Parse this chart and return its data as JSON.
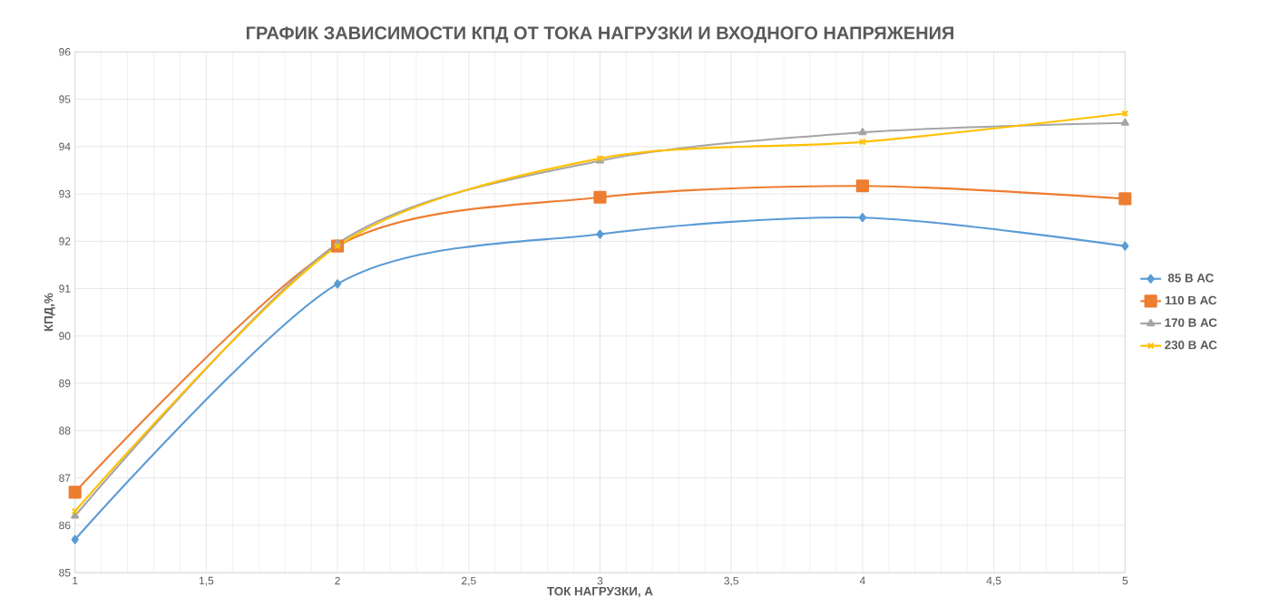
{
  "chart_data": {
    "type": "line",
    "title": "ГРАФИК ЗАВИСИМОСТИ КПД ОТ ТОКА НАГРУЗКИ И ВХОДНОГО НАПРЯЖЕНИЯ",
    "xlabel": "ТОК НАГРУЗКИ, А",
    "ylabel": "КПД,%",
    "x": [
      1,
      2,
      3,
      4,
      5
    ],
    "series": [
      {
        "name": "85 В АС",
        "color": "#5b9bd5",
        "marker": "diamond",
        "values": [
          85.7,
          91.1,
          92.15,
          92.5,
          91.9
        ]
      },
      {
        "name": "110 В АС",
        "color": "#ed7d31",
        "marker": "square",
        "values": [
          86.7,
          91.9,
          92.93,
          93.17,
          92.9
        ]
      },
      {
        "name": "170 В АС",
        "color": "#a5a5a5",
        "marker": "triangle",
        "values": [
          86.2,
          91.95,
          93.7,
          94.3,
          94.5
        ]
      },
      {
        "name": "230 В АС",
        "color": "#ffc000",
        "marker": "cross",
        "values": [
          86.3,
          91.9,
          93.75,
          94.1,
          94.7
        ]
      }
    ],
    "xlim": [
      1,
      5
    ],
    "xticks": [
      1,
      {
        "value": 1.5,
        "label": "1,5"
      },
      2,
      {
        "value": 2.5,
        "label": "2,5"
      },
      3,
      {
        "value": 3.5,
        "label": "3,5"
      },
      4,
      {
        "value": 4.5,
        "label": "4,5"
      },
      5
    ],
    "ylim": [
      85,
      96
    ],
    "yticks": [
      85,
      86,
      87,
      88,
      89,
      90,
      91,
      92,
      93,
      94,
      95,
      96
    ],
    "grid": true,
    "legend": "right",
    "line_style": "solid"
  }
}
